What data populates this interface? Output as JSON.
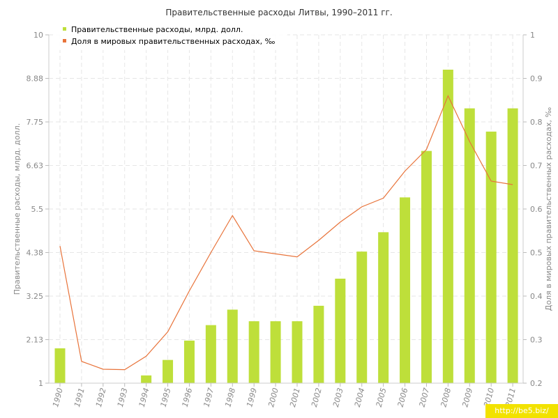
{
  "watermark": "http://be5.biz/",
  "chart_data": {
    "type": "bar",
    "title": "Правительственные расходы Литвы, 1990–2011 гг.",
    "categories": [
      "1990",
      "1991",
      "1992",
      "1993",
      "1994",
      "1995",
      "1996",
      "1997",
      "1998",
      "1999",
      "2000",
      "2001",
      "2002",
      "2003",
      "2004",
      "2005",
      "2006",
      "2007",
      "2008",
      "2009",
      "2010",
      "2011"
    ],
    "series": [
      {
        "name": "Правительственные расходы, млрд. долл.",
        "type": "bar",
        "axis": "left",
        "color": "#bedf3a",
        "values": [
          1.9,
          null,
          null,
          null,
          1.2,
          1.6,
          2.1,
          2.5,
          2.9,
          2.6,
          2.6,
          2.6,
          3.0,
          3.7,
          4.4,
          4.9,
          5.8,
          7.0,
          9.1,
          8.1,
          7.5,
          8.1
        ]
      },
      {
        "name": "Доля в мировых правительственных расходах, ‰",
        "type": "line",
        "axis": "right",
        "color": "#e8733a",
        "values": [
          0.515,
          0.25,
          0.232,
          0.231,
          0.262,
          0.318,
          0.412,
          0.5,
          0.585,
          0.504,
          0.497,
          0.49,
          0.528,
          0.57,
          0.605,
          0.625,
          0.687,
          0.737,
          0.86,
          0.755,
          0.664,
          0.656
        ]
      }
    ],
    "ylabel": "Правительственные расходы, млрд. долл.",
    "ylabel_right": "Доля в мировых правительственных расходах, ‰",
    "ylim": [
      1,
      10
    ],
    "ylim_right": [
      0.2,
      1
    ],
    "yticks": [
      "1",
      "2.13",
      "3.25",
      "4.38",
      "5.5",
      "6.63",
      "7.75",
      "8.88",
      "10"
    ],
    "yticks_right": [
      "0.2",
      "0.3",
      "0.4",
      "0.5",
      "0.6",
      "0.7",
      "0.8",
      "0.9",
      "1"
    ],
    "grid": true,
    "legend_position": "top-left"
  }
}
